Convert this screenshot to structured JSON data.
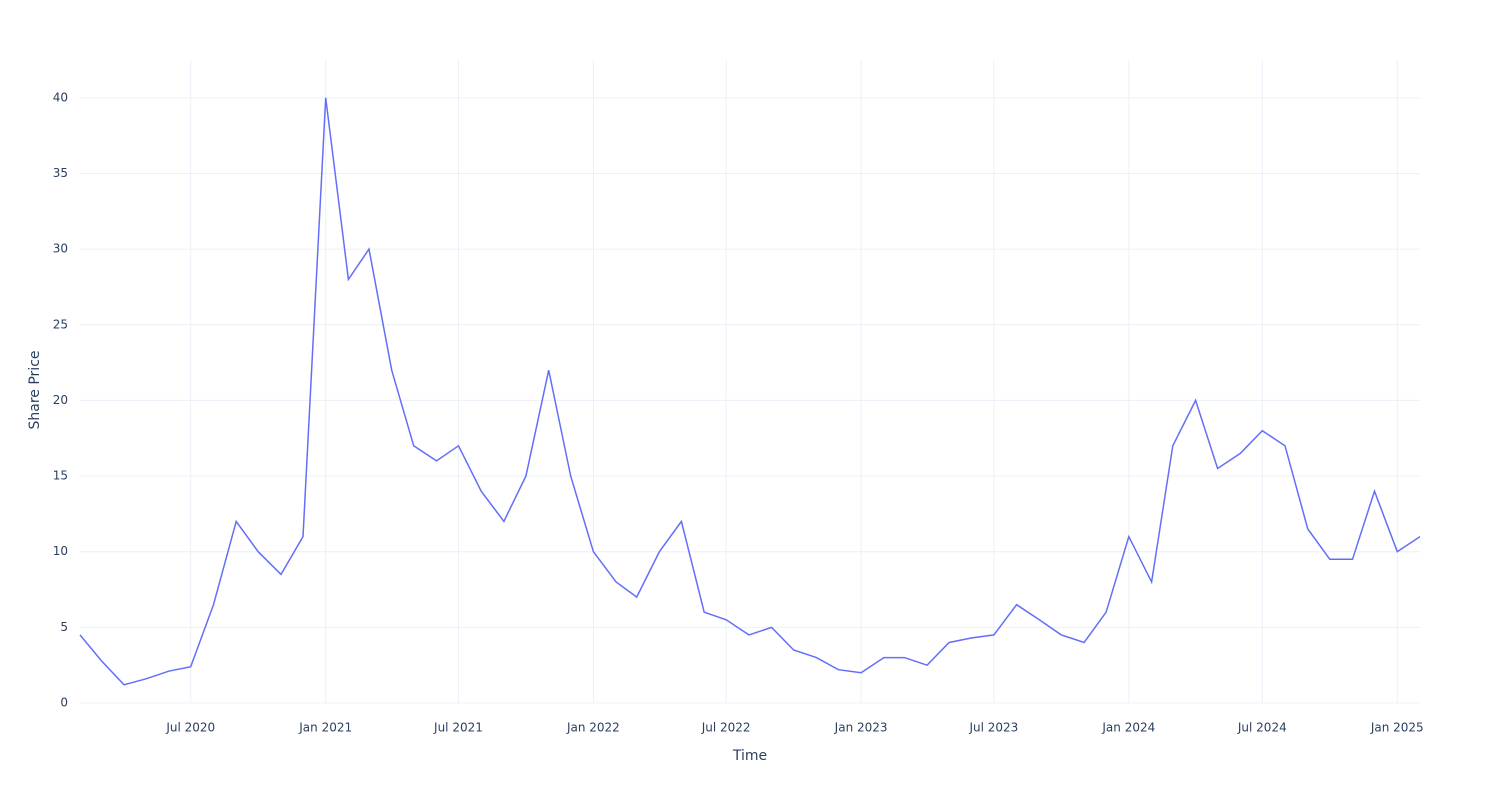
{
  "chart_data": {
    "type": "line",
    "x_label": "Time",
    "y_label": "Share Price",
    "x": [
      "2020-02",
      "2020-03",
      "2020-04",
      "2020-05",
      "2020-06",
      "2020-07",
      "2020-08",
      "2020-09",
      "2020-10",
      "2020-11",
      "2020-12",
      "2021-01",
      "2021-02",
      "2021-03",
      "2021-04",
      "2021-05",
      "2021-06",
      "2021-07",
      "2021-08",
      "2021-09",
      "2021-10",
      "2021-11",
      "2021-12",
      "2022-01",
      "2022-02",
      "2022-03",
      "2022-04",
      "2022-05",
      "2022-06",
      "2022-07",
      "2022-08",
      "2022-09",
      "2022-10",
      "2022-11",
      "2022-12",
      "2023-01",
      "2023-02",
      "2023-03",
      "2023-04",
      "2023-05",
      "2023-06",
      "2023-07",
      "2023-08",
      "2023-09",
      "2023-10",
      "2023-11",
      "2023-12",
      "2024-01",
      "2024-02",
      "2024-03",
      "2024-04",
      "2024-05",
      "2024-06",
      "2024-07",
      "2024-08",
      "2024-09",
      "2024-10",
      "2024-11",
      "2024-12",
      "2025-01",
      "2025-02"
    ],
    "series": [
      {
        "name": "Share Price",
        "color": "#636efa",
        "values": [
          4.5,
          2.8,
          1.2,
          1.6,
          2.1,
          2.4,
          6.5,
          12,
          10,
          8.5,
          11,
          40,
          28,
          30,
          22,
          17,
          16,
          17,
          14,
          12,
          15,
          22,
          15,
          10,
          8,
          7,
          10,
          12,
          6,
          5.5,
          4.5,
          5,
          3.5,
          3,
          2.2,
          2,
          3,
          3,
          2.5,
          4,
          4.3,
          4.5,
          6.5,
          5.5,
          4.5,
          4,
          6,
          11,
          8,
          17,
          20,
          15.5,
          16.5,
          18,
          17,
          11.5,
          9.5,
          9.5,
          14,
          10,
          11
        ]
      }
    ],
    "xlim": [
      "2020-02",
      "2025-02"
    ],
    "xticks": [
      {
        "value": "2020-07",
        "label": "Jul 2020"
      },
      {
        "value": "2021-01",
        "label": "Jan 2021"
      },
      {
        "value": "2021-07",
        "label": "Jul 2021"
      },
      {
        "value": "2022-01",
        "label": "Jan 2022"
      },
      {
        "value": "2022-07",
        "label": "Jul 2022"
      },
      {
        "value": "2023-01",
        "label": "Jan 2023"
      },
      {
        "value": "2023-07",
        "label": "Jul 2023"
      },
      {
        "value": "2024-01",
        "label": "Jan 2024"
      },
      {
        "value": "2024-07",
        "label": "Jul 2024"
      },
      {
        "value": "2025-01",
        "label": "Jan 2025"
      }
    ],
    "ylim": [
      0,
      42.5
    ],
    "yticks": [
      0,
      5,
      10,
      15,
      20,
      25,
      30,
      35,
      40
    ],
    "grid": true
  }
}
